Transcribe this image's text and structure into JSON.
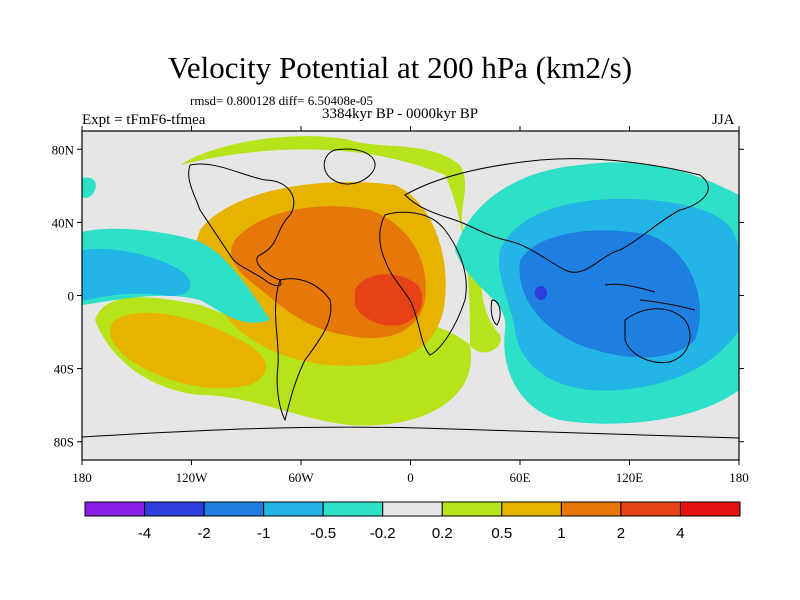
{
  "title": "Velocity Potential at 200 hPa (km2/s)",
  "stats": "rmsd= 0.800128 diff= 6.50408e-05",
  "experiment": "Expt = tFmF6-tfmea",
  "period": "3384kyr BP - 0000kyr BP",
  "season": "JJA",
  "lat_labels": [
    "80N",
    "40N",
    "0",
    "40S",
    "80S"
  ],
  "lon_labels": [
    "180",
    "120W",
    "60W",
    "0",
    "60E",
    "120E",
    "180"
  ],
  "colorbar": {
    "labels": [
      "-4",
      "-2",
      "-1",
      "-0.5",
      "-0.2",
      "0.2",
      "0.5",
      "1",
      "2",
      "4"
    ],
    "colors": [
      "#8c1eeb",
      "#2e3de0",
      "#1f7fe0",
      "#22b5e6",
      "#2ee0c8",
      "#e6e6e6",
      "#b7e31a",
      "#e6b400",
      "#e6780a",
      "#e54315",
      "#e6120f"
    ]
  },
  "map_colors": {
    "neutral": "#e6e6e6",
    "light_blue": "#22b5e6",
    "teal": "#2ee0c8",
    "blue": "#1f7fe0",
    "dark_blue": "#2e3de0",
    "yellow_green": "#b7e31a",
    "gold": "#e6b400",
    "orange": "#e6780a",
    "red": "#e54315",
    "coast": "#000000"
  }
}
